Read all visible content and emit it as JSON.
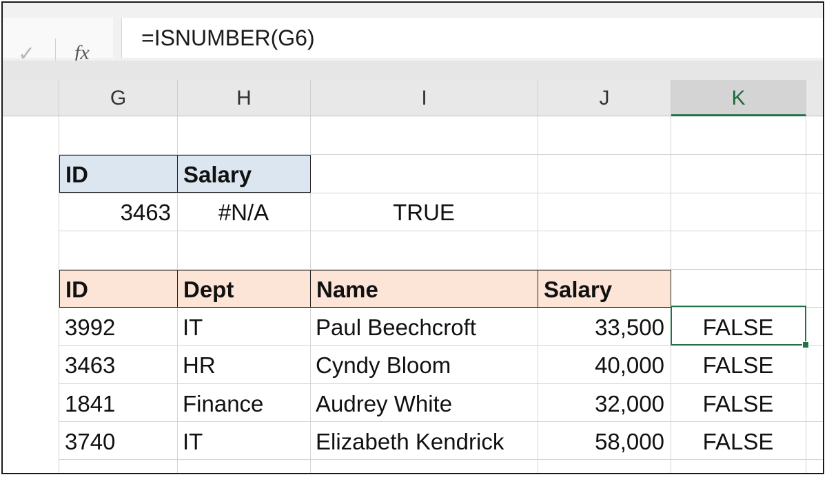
{
  "formula_bar": {
    "check_icon": "checkmark-icon",
    "fx_label": "fx",
    "formula": "=ISNUMBER(G6)"
  },
  "columns": [
    "G",
    "H",
    "I",
    "J",
    "K"
  ],
  "active_column": "K",
  "lookup_table": {
    "headers": {
      "id": "ID",
      "salary": "Salary"
    },
    "row": {
      "id": "3463",
      "salary": "#N/A",
      "result": "TRUE"
    }
  },
  "data_table": {
    "headers": {
      "id": "ID",
      "dept": "Dept",
      "name": "Name",
      "salary": "Salary"
    },
    "rows": [
      {
        "id": "3992",
        "dept": "IT",
        "name": "Paul Beechcroft",
        "salary": "33,500",
        "check": "FALSE"
      },
      {
        "id": "3463",
        "dept": "HR",
        "name": "Cyndy Bloom",
        "salary": "40,000",
        "check": "FALSE"
      },
      {
        "id": "1841",
        "dept": "Finance",
        "name": "Audrey White",
        "salary": "32,000",
        "check": "FALSE"
      },
      {
        "id": "3740",
        "dept": "IT",
        "name": "Elizabeth Kendrick",
        "salary": "58,000",
        "check": "FALSE"
      }
    ]
  },
  "colors": {
    "accent_green": "#217346",
    "header_blue": "#dce6f1",
    "header_peach": "#fce4d6"
  }
}
